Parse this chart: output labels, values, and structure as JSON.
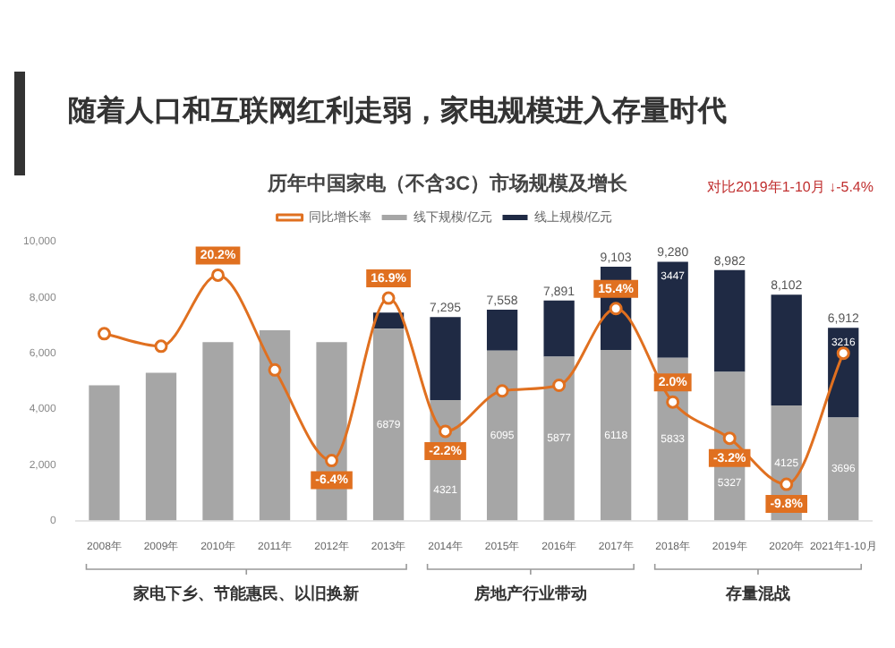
{
  "chart_data": {
    "type": "bar",
    "stacked": true,
    "title": "随着人口和互联网红利走弱，家电规模进入存量时代",
    "subtitle": "历年中国家电（不含3C）市场规模及增长",
    "categories": [
      "2008年",
      "2009年",
      "2010年",
      "2011年",
      "2012年",
      "2013年",
      "2014年",
      "2015年",
      "2016年",
      "2017年",
      "2018年",
      "2019年",
      "2020年",
      "2021年1-10月"
    ],
    "series": [
      {
        "name": "线下规模/亿元",
        "color": "#a6a6a6",
        "values": [
          4850,
          5300,
          6400,
          6820,
          6400,
          6879,
          4321,
          6095,
          5877,
          6118,
          5833,
          5327,
          4125,
          3696
        ],
        "value_labels": [
          null,
          null,
          null,
          null,
          null,
          "6879",
          "4321",
          "6095",
          "5877",
          "6118",
          "5833",
          "5327",
          "4125",
          "3696"
        ]
      },
      {
        "name": "线上规模/亿元",
        "color": "#1f2a44",
        "values": [
          null,
          null,
          null,
          null,
          null,
          581,
          2974,
          1463,
          2014,
          2985,
          3447,
          3655,
          3977,
          3216
        ],
        "value_labels": [
          null,
          null,
          null,
          null,
          null,
          null,
          null,
          null,
          null,
          null,
          "3447",
          null,
          null,
          "3216"
        ]
      },
      {
        "name": "同比增长率",
        "type": "line",
        "axis": "y2",
        "color": "#e07020",
        "marker": "circle",
        "values": [
          11.8,
          10,
          20.2,
          6.6,
          -6.4,
          16.9,
          -2.2,
          3.6,
          4.4,
          15.4,
          2.0,
          -3.2,
          -9.8,
          9
        ],
        "value_labels": [
          null,
          null,
          "20.2%",
          null,
          "-6.4%",
          "16.9%",
          "-2.2%",
          null,
          null,
          "15.4%",
          "2.0%",
          "-3.2%",
          "-9.8%",
          null
        ]
      }
    ],
    "totals": [
      null,
      null,
      null,
      null,
      null,
      null,
      "7,295",
      "7,558",
      "7,891",
      "9,103",
      "9,280",
      "8,982",
      "8,102",
      "6,912"
    ],
    "ylim": [
      0,
      10000
    ],
    "yticks": [
      0,
      {
        "value": 2000,
        "label": "2,000"
      },
      {
        "value": 4000,
        "label": "4,000"
      },
      {
        "value": 6000,
        "label": "6,000"
      },
      {
        "value": 8000,
        "label": "8,000"
      },
      {
        "value": 10000,
        "label": "10,000"
      }
    ],
    "y2lim": [
      -15,
      25
    ],
    "grid": false,
    "legend": "top",
    "annotations": [
      "对比2019年1-10月 ↓-5.4%",
      "家电下乡、节能惠民、以旧换新",
      "房地产行业带动",
      "存量混战"
    ]
  }
}
